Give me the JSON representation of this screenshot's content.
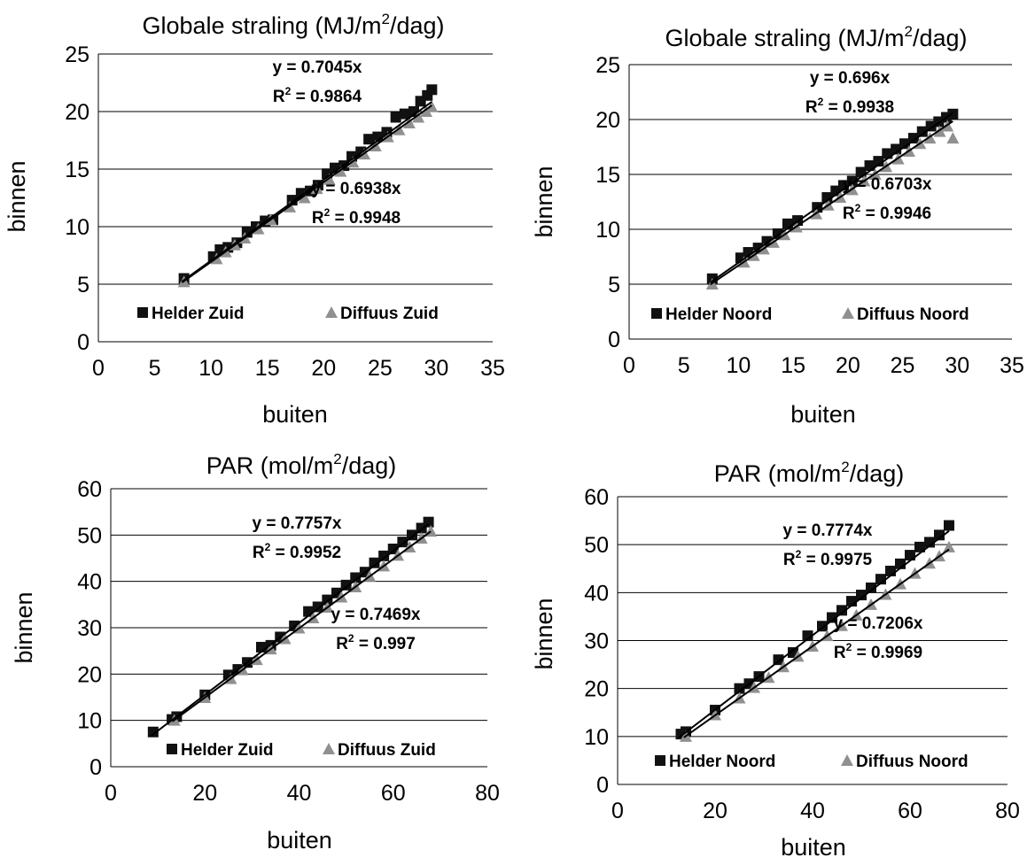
{
  "chart_data": [
    {
      "type": "scatter",
      "title": "Globale straling (MJ/m²/dag)",
      "title_parts": {
        "before": "Globale straling (MJ/m",
        "sup": "2",
        "after": "/dag)"
      },
      "xlabel": "buiten",
      "ylabel": "binnen",
      "xlim": [
        0,
        35
      ],
      "ylim": [
        0,
        25
      ],
      "xticks": [
        "0",
        "5",
        "10",
        "15",
        "20",
        "25",
        "30",
        "35"
      ],
      "yticks": [
        "0",
        "5",
        "10",
        "15",
        "20",
        "25"
      ],
      "grid": "horizontal",
      "legend_placement": "bottom-inside",
      "series": [
        {
          "name": "Helder Zuid",
          "marker": "square",
          "color": "#111111",
          "trend_slope": 0.7045,
          "eq_label": "y = 0.7045x",
          "r2_label": "R² = 0.9864",
          "r2_parts": {
            "base": "R",
            "sup": "2",
            "rest": " = 0.9864"
          },
          "x": [
            7.6,
            10.2,
            10.8,
            11.5,
            12.3,
            13.2,
            14.0,
            14.8,
            15.5,
            17.2,
            18.0,
            18.8,
            19.5,
            20.3,
            21.0,
            21.8,
            22.5,
            23.3,
            24.0,
            24.8,
            25.6,
            26.4,
            27.2,
            28.0,
            28.6,
            29.2,
            29.6
          ],
          "y": [
            5.5,
            7.4,
            8.0,
            8.2,
            8.6,
            9.5,
            10.0,
            10.5,
            10.6,
            12.3,
            12.9,
            13.1,
            13.6,
            14.6,
            15.1,
            15.3,
            16.1,
            16.5,
            17.6,
            17.8,
            18.2,
            19.5,
            19.8,
            20.0,
            20.9,
            21.4,
            21.9
          ]
        },
        {
          "name": "Diffuus Zuid",
          "marker": "triangle",
          "color": "#909090",
          "trend_slope": 0.6938,
          "eq_label": "y = 0.6938x",
          "r2_label": "R² = 0.9948",
          "r2_parts": {
            "base": "R",
            "sup": "2",
            "rest": " = 0.9948"
          },
          "x": [
            7.6,
            10.5,
            11.3,
            12.1,
            13.0,
            14.2,
            15.3,
            17.0,
            18.3,
            19.4,
            20.5,
            21.5,
            22.6,
            23.6,
            24.6,
            25.7,
            26.7,
            27.6,
            28.4,
            29.1,
            29.6
          ],
          "y": [
            5.2,
            7.2,
            7.8,
            8.4,
            9.0,
            9.8,
            10.6,
            11.7,
            12.5,
            13.3,
            14.1,
            14.8,
            15.6,
            16.3,
            17.0,
            17.8,
            18.4,
            19.0,
            19.5,
            20.0,
            20.4
          ]
        }
      ]
    },
    {
      "type": "scatter",
      "title": "Globale straling (MJ/m²/dag)",
      "title_parts": {
        "before": "Globale straling (MJ/m",
        "sup": "2",
        "after": "/dag)"
      },
      "xlabel": "buiten",
      "ylabel": "binnen",
      "xlim": [
        0,
        35
      ],
      "ylim": [
        0,
        25
      ],
      "xticks": [
        "0",
        "5",
        "10",
        "15",
        "20",
        "25",
        "30",
        "35"
      ],
      "yticks": [
        "0",
        "5",
        "10",
        "15",
        "20",
        "25"
      ],
      "grid": "horizontal",
      "legend_placement": "bottom-inside",
      "series": [
        {
          "name": "Helder Noord",
          "marker": "square",
          "color": "#111111",
          "trend_slope": 0.696,
          "eq_label": "y = 0.696x",
          "r2_label": "R² = 0.9938",
          "r2_parts": {
            "base": "R",
            "sup": "2",
            "rest": " = 0.9938"
          },
          "x": [
            7.6,
            10.2,
            10.9,
            11.8,
            12.6,
            13.6,
            14.5,
            15.4,
            17.2,
            18.1,
            18.9,
            19.6,
            20.4,
            21.2,
            22.0,
            22.8,
            23.6,
            24.4,
            25.2,
            26.0,
            26.8,
            27.6,
            28.3,
            29.0,
            29.6
          ],
          "y": [
            5.5,
            7.4,
            7.9,
            8.3,
            8.9,
            9.6,
            10.5,
            10.8,
            12.0,
            12.9,
            13.5,
            14.0,
            14.4,
            15.2,
            15.8,
            16.2,
            16.9,
            17.3,
            17.8,
            18.3,
            18.9,
            19.4,
            19.8,
            20.2,
            20.5
          ]
        },
        {
          "name": "Diffuus Noord",
          "marker": "triangle",
          "color": "#909090",
          "trend_slope": 0.6703,
          "eq_label": "y = 0.6703x",
          "r2_label": "R² = 0.9946",
          "r2_parts": {
            "base": "R",
            "sup": "2",
            "rest": " = 0.9946"
          },
          "x": [
            7.6,
            10.5,
            11.4,
            12.3,
            13.2,
            14.2,
            15.3,
            17.1,
            18.2,
            19.3,
            20.4,
            21.5,
            22.5,
            23.5,
            24.6,
            25.6,
            26.6,
            27.5,
            28.4,
            29.1,
            29.6
          ],
          "y": [
            5.0,
            7.0,
            7.6,
            8.2,
            8.8,
            9.5,
            10.2,
            11.4,
            12.2,
            12.9,
            13.6,
            14.4,
            15.0,
            15.7,
            16.4,
            17.1,
            17.8,
            18.3,
            18.9,
            19.4,
            18.3
          ]
        }
      ]
    },
    {
      "type": "scatter",
      "title": "PAR (mol/m²/dag)",
      "title_parts": {
        "before": "PAR (mol/m",
        "sup": "2",
        "after": "/dag)"
      },
      "xlabel": "buiten",
      "ylabel": "binnen",
      "xlim": [
        0,
        80
      ],
      "ylim": [
        0,
        60
      ],
      "xticks": [
        "0",
        "20",
        "40",
        "60",
        "80"
      ],
      "yticks": [
        "0",
        "10",
        "20",
        "30",
        "40",
        "50",
        "60"
      ],
      "grid": "horizontal",
      "legend_placement": "bottom-inside",
      "series": [
        {
          "name": "Helder Zuid",
          "marker": "square",
          "color": "#111111",
          "trend_slope": 0.7757,
          "eq_label": "y = 0.7757x",
          "r2_label": "R² = 0.9952",
          "r2_parts": {
            "base": "R",
            "sup": "2",
            "rest": " = 0.9952"
          },
          "x": [
            9.0,
            13.0,
            14.0,
            20.0,
            25.0,
            27.0,
            29.0,
            32.0,
            34.0,
            36.0,
            39.0,
            42.0,
            44.0,
            46.0,
            48.0,
            50.0,
            52.0,
            54.0,
            56.0,
            58.0,
            60.0,
            62.0,
            64.0,
            66.0,
            67.5
          ],
          "y": [
            7.5,
            10.2,
            10.8,
            15.5,
            19.8,
            21.0,
            22.5,
            25.8,
            26.2,
            28.0,
            30.4,
            33.5,
            34.5,
            36.0,
            37.5,
            39.2,
            40.8,
            42.0,
            44.0,
            45.5,
            47.0,
            48.5,
            50.0,
            51.5,
            52.8
          ]
        },
        {
          "name": "Diffuus Zuid",
          "marker": "triangle",
          "color": "#909090",
          "trend_slope": 0.7469,
          "eq_label": "y = 0.7469x",
          "r2_label": "R² = 0.997",
          "r2_parts": {
            "base": "R",
            "sup": "2",
            "rest": " = 0.997"
          },
          "x": [
            13.5,
            20.0,
            25.5,
            28.0,
            31.0,
            34.0,
            37.0,
            40.0,
            43.0,
            46.0,
            49.0,
            52.0,
            55.0,
            58.0,
            61.0,
            63.5,
            66.0,
            68.0
          ],
          "y": [
            10.0,
            14.9,
            19.0,
            20.9,
            23.1,
            25.4,
            27.6,
            29.9,
            32.1,
            34.4,
            36.6,
            38.8,
            41.1,
            43.3,
            45.6,
            47.4,
            49.3,
            50.8
          ]
        }
      ]
    },
    {
      "type": "scatter",
      "title": "PAR (mol/m²/dag)",
      "title_parts": {
        "before": "PAR (mol/m",
        "sup": "2",
        "after": "/dag)"
      },
      "xlabel": "buiten",
      "ylabel": "binnen",
      "xlim": [
        0,
        80
      ],
      "ylim": [
        0,
        60
      ],
      "xticks": [
        "0",
        "20",
        "40",
        "60",
        "80"
      ],
      "yticks": [
        "0",
        "10",
        "20",
        "30",
        "40",
        "50",
        "60"
      ],
      "grid": "horizontal",
      "legend_placement": "bottom-inside",
      "series": [
        {
          "name": "Helder Noord",
          "marker": "square",
          "color": "#111111",
          "trend_slope": 0.7774,
          "eq_label": "y = 0.7774x",
          "r2_label": "R² = 0.9975",
          "r2_parts": {
            "base": "R",
            "sup": "2",
            "rest": " = 0.9975"
          },
          "x": [
            13.0,
            14.0,
            20.0,
            25.0,
            27.0,
            29.0,
            33.0,
            36.0,
            39.0,
            42.0,
            44.0,
            46.0,
            48.0,
            50.0,
            52.0,
            54.0,
            56.0,
            58.0,
            60.0,
            62.0,
            64.0,
            66.0,
            68.0
          ],
          "y": [
            10.5,
            11.0,
            15.5,
            20.0,
            21.0,
            22.5,
            26.0,
            27.5,
            31.0,
            33.0,
            34.8,
            36.3,
            38.2,
            39.5,
            41.0,
            42.8,
            44.5,
            46.0,
            47.8,
            49.5,
            50.5,
            52.0,
            54.0
          ]
        },
        {
          "name": "Diffuus Noord",
          "marker": "triangle",
          "color": "#909090",
          "trend_slope": 0.7206,
          "eq_label": "y = 0.7206x",
          "r2_label": "R² = 0.9969",
          "r2_parts": {
            "base": "R",
            "sup": "2",
            "rest": " = 0.9969"
          },
          "x": [
            14.0,
            20.0,
            25.0,
            28.0,
            31.0,
            34.0,
            37.0,
            40.0,
            43.0,
            46.0,
            49.0,
            52.0,
            55.0,
            58.0,
            61.0,
            64.0,
            66.0,
            68.0
          ],
          "y": [
            10.0,
            14.5,
            18.0,
            20.2,
            22.3,
            24.5,
            26.7,
            28.8,
            31.0,
            33.1,
            35.3,
            37.5,
            39.6,
            41.8,
            44.0,
            46.1,
            47.6,
            49.5
          ]
        }
      ]
    }
  ]
}
